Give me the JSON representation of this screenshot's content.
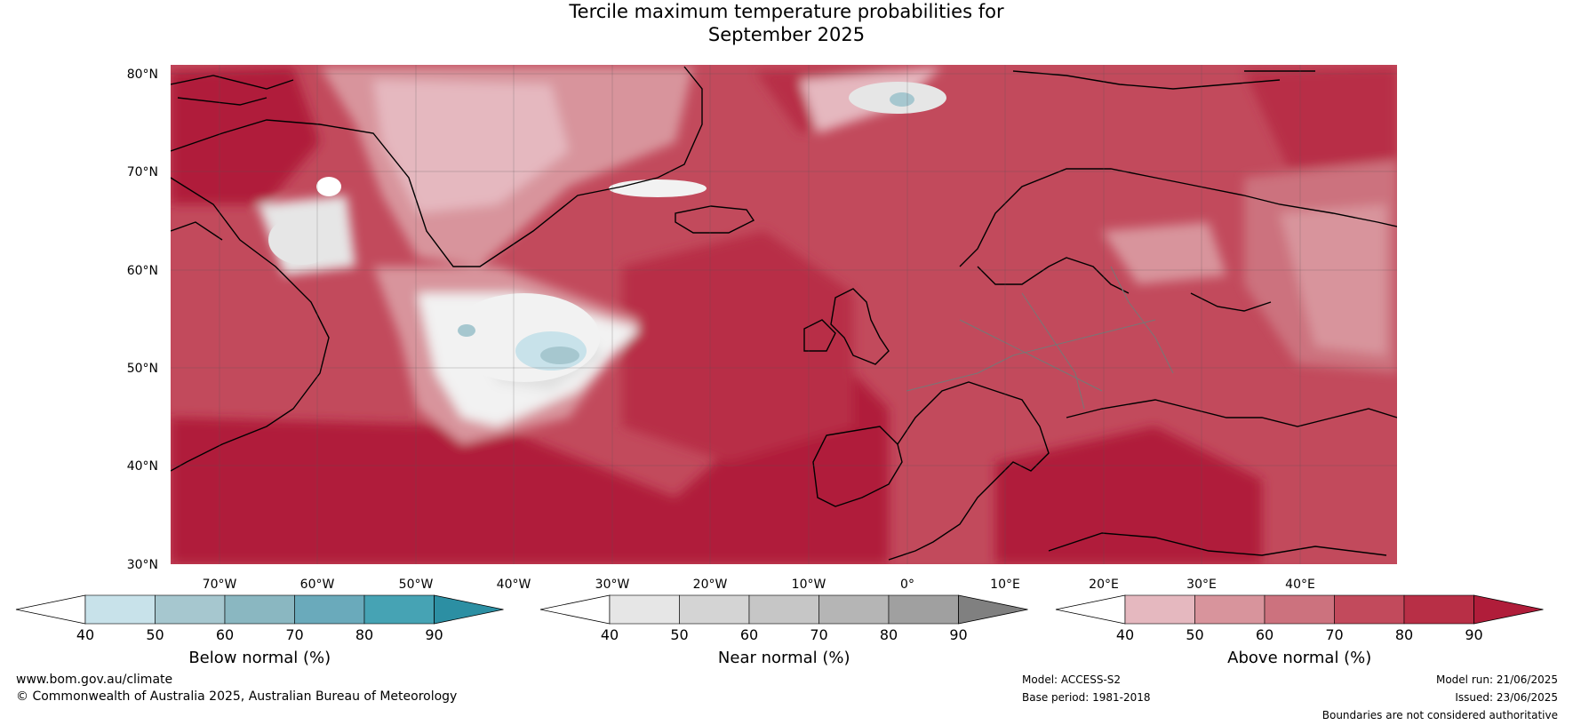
{
  "title": {
    "line1": "Tercile maximum temperature probabilities for",
    "line2": "September 2025"
  },
  "axes": {
    "lat_labels": [
      "80°N",
      "70°N",
      "60°N",
      "50°N",
      "40°N",
      "30°N"
    ],
    "lon_labels": [
      "70°W",
      "60°W",
      "50°W",
      "40°W",
      "30°W",
      "20°W",
      "10°W",
      "0°",
      "10°E",
      "20°E",
      "30°E",
      "40°E"
    ]
  },
  "colorbars": [
    {
      "title": "Below normal (%)",
      "ticks": [
        "40",
        "50",
        "60",
        "70",
        "80",
        "90"
      ],
      "colors": [
        "#ffffff",
        "#c8e2ea",
        "#a6c7cf",
        "#8ab7c1",
        "#6aaabb",
        "#46a3b4",
        "#2c8fa3"
      ]
    },
    {
      "title": "Near normal (%)",
      "ticks": [
        "40",
        "50",
        "60",
        "70",
        "80",
        "90"
      ],
      "colors": [
        "#ffffff",
        "#e6e6e6",
        "#d4d4d4",
        "#c6c6c6",
        "#b5b5b5",
        "#a0a0a0",
        "#808080"
      ]
    },
    {
      "title": "Above normal (%)",
      "ticks": [
        "40",
        "50",
        "60",
        "70",
        "80",
        "90"
      ],
      "colors": [
        "#ffffff",
        "#e5b8bf",
        "#d8949c",
        "#cc727e",
        "#c24a5c",
        "#b82f46",
        "#b01d3a"
      ]
    }
  ],
  "footer": {
    "website": "www.bom.gov.au/climate",
    "copyright": "© Commonwealth of Australia 2025, Australian Bureau of Meteorology",
    "model": "Model: ACCESS-S2",
    "base_period": "Base period: 1981-2018",
    "model_run": "Model run: 21/06/2025",
    "issued": "Issued: 23/06/2025",
    "disclaimer": "Boundaries are not considered authoritative"
  }
}
